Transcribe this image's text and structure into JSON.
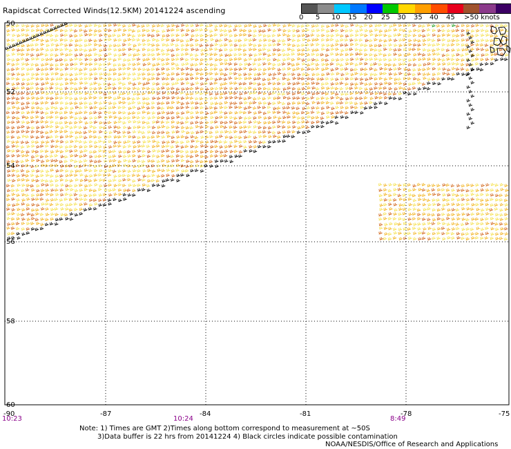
{
  "title": "Rapidscat Corrected Winds(12.5KM) 20141224 ascending",
  "scale": {
    "colors": [
      "#555555",
      "#8c8c8c",
      "#00c8ff",
      "#0078ff",
      "#0000ff",
      "#00c800",
      "#ffd700",
      "#ff9f00",
      "#ff4d00",
      "#e8001c",
      "#a0522d",
      "#8b3a8b",
      "#3c0064"
    ],
    "labels": [
      "0",
      "5",
      "10",
      "15",
      "20",
      "25",
      "30",
      "35",
      "40",
      "45",
      ">50 knots"
    ]
  },
  "lat_labels": [
    "50",
    "52",
    "54",
    "56",
    "58",
    "60"
  ],
  "lon_labels": [
    "-90",
    "-87",
    "-84",
    "-81",
    "-78",
    "-75"
  ],
  "times": [
    "10:23",
    "10:24",
    "8:49"
  ],
  "notes": {
    "line1": "Note: 1) Times are GMT 2)Times along bottom correspond to measurement at ~50S",
    "line2": "3)Data buffer is 22 hrs from 20141224 4) Black circles indicate possible contamination",
    "line3": "NOAA/NESDIS/Office of Research and Applications"
  },
  "wind_colors": {
    "light": "#f5e04a",
    "mid": "#f2b21c",
    "strong": "#d2661a",
    "edge": "#000000",
    "calm": "#1a9a1a"
  }
}
